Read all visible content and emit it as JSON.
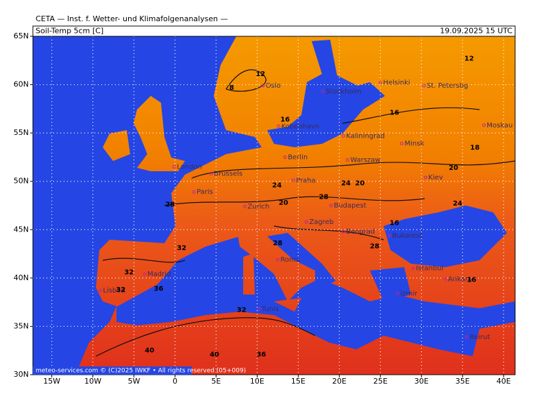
{
  "map": {
    "header": "CETA — Inst. f. Wetter- und Klimafolgenanalysen —",
    "panel_title": "Soil-Temp 5cm [C]",
    "valid_time": "19.09.2025 15 UTC",
    "footer": "meteo-services.com © (C)2025 IWKF • All rights reserved (05+009)",
    "lon_range": [
      -17.3,
      41.4
    ],
    "lat_range": [
      30,
      65
    ],
    "lon_ticks": [
      {
        "value": -15,
        "label": "15W"
      },
      {
        "value": -10,
        "label": "10W"
      },
      {
        "value": -5,
        "label": "5W"
      },
      0,
      {
        "value": 5,
        "label": "5E"
      },
      {
        "value": 10,
        "label": "10E"
      },
      {
        "value": 15,
        "label": "15E"
      },
      {
        "value": 20,
        "label": "20E"
      },
      {
        "value": 25,
        "label": "25E"
      },
      {
        "value": 30,
        "label": "30E"
      },
      {
        "value": 35,
        "label": "35E"
      },
      {
        "value": 40,
        "label": "40E"
      }
    ],
    "lat_ticks": [
      {
        "value": 30,
        "label": "30N"
      },
      {
        "value": 35,
        "label": "35N"
      },
      {
        "value": 40,
        "label": "40N"
      },
      {
        "value": 45,
        "label": "45N"
      },
      {
        "value": 50,
        "label": "50N"
      },
      {
        "value": 55,
        "label": "55N"
      },
      {
        "value": 60,
        "label": "60N"
      },
      {
        "value": 65,
        "label": "65N"
      }
    ],
    "cities": [
      {
        "name": "Oslo",
        "lon": 10.7,
        "lat": 59.9
      },
      {
        "name": "Stockholm",
        "lon": 18.0,
        "lat": 59.3
      },
      {
        "name": "Helsinki",
        "lon": 25.0,
        "lat": 60.2
      },
      {
        "name": "St. Petersbg",
        "lon": 30.3,
        "lat": 59.9
      },
      {
        "name": "Kobenhavn",
        "lon": 12.6,
        "lat": 55.7
      },
      {
        "name": "Kaliningrad",
        "lon": 20.5,
        "lat": 54.7
      },
      {
        "name": "Minsk",
        "lon": 27.6,
        "lat": 53.9
      },
      {
        "name": "Moskau",
        "lon": 37.6,
        "lat": 55.8
      },
      {
        "name": "London",
        "lon": -0.1,
        "lat": 51.5
      },
      {
        "name": "Brussels",
        "lon": 4.4,
        "lat": 50.8
      },
      {
        "name": "Berlin",
        "lon": 13.4,
        "lat": 52.5
      },
      {
        "name": "Warszaw",
        "lon": 21.0,
        "lat": 52.2
      },
      {
        "name": "Kiev",
        "lon": 30.5,
        "lat": 50.4
      },
      {
        "name": "Paris",
        "lon": 2.3,
        "lat": 48.9
      },
      {
        "name": "Praha",
        "lon": 14.4,
        "lat": 50.1
      },
      {
        "name": "Zurich",
        "lon": 8.5,
        "lat": 47.4
      },
      {
        "name": "Budapest",
        "lon": 19.0,
        "lat": 47.5
      },
      {
        "name": "Zagreb",
        "lon": 16.0,
        "lat": 45.8
      },
      {
        "name": "Beograd",
        "lon": 20.5,
        "lat": 44.8
      },
      {
        "name": "Bukarest",
        "lon": 26.1,
        "lat": 44.4
      },
      {
        "name": "Madrid",
        "lon": -3.7,
        "lat": 40.4
      },
      {
        "name": "Lisboa",
        "lon": -9.1,
        "lat": 38.7
      },
      {
        "name": "Roma",
        "lon": 12.5,
        "lat": 41.9
      },
      {
        "name": "Istanbul",
        "lon": 29.0,
        "lat": 41.0
      },
      {
        "name": "Ankara",
        "lon": 32.9,
        "lat": 39.9
      },
      {
        "name": "Izmir",
        "lon": 27.1,
        "lat": 38.4
      },
      {
        "name": "Beirut",
        "lon": 35.5,
        "lat": 33.9
      },
      {
        "name": "Tunis",
        "lon": 10.2,
        "lat": 36.8
      }
    ],
    "contour_labels": [
      {
        "value": 8,
        "lon": 6.9,
        "lat": 59.7
      },
      {
        "value": 12,
        "lon": 10.4,
        "lat": 61.1
      },
      {
        "value": 12,
        "lon": 35.8,
        "lat": 62.7
      },
      {
        "value": 16,
        "lon": 26.7,
        "lat": 57.1
      },
      {
        "value": 16,
        "lon": 13.4,
        "lat": 56.4
      },
      {
        "value": 18,
        "lon": 36.5,
        "lat": 53.5
      },
      {
        "value": 20,
        "lon": 33.9,
        "lat": 51.4
      },
      {
        "value": 20,
        "lon": 22.5,
        "lat": 49.8
      },
      {
        "value": 24,
        "lon": 20.8,
        "lat": 49.8
      },
      {
        "value": 24,
        "lon": 12.4,
        "lat": 49.6
      },
      {
        "value": 24,
        "lon": 34.4,
        "lat": 47.7
      },
      {
        "value": 28,
        "lon": 18.1,
        "lat": 48.4
      },
      {
        "value": 20,
        "lon": 13.2,
        "lat": 47.8
      },
      {
        "value": 28,
        "lon": -0.6,
        "lat": 47.6
      },
      {
        "value": 32,
        "lon": 0.8,
        "lat": 43.1
      },
      {
        "value": 28,
        "lon": 12.5,
        "lat": 43.6
      },
      {
        "value": 32,
        "lon": -5.6,
        "lat": 40.6
      },
      {
        "value": 32,
        "lon": -6.6,
        "lat": 38.8
      },
      {
        "value": 36,
        "lon": -2.0,
        "lat": 38.9
      },
      {
        "value": 28,
        "lon": 24.3,
        "lat": 43.3
      },
      {
        "value": 16,
        "lon": 36.1,
        "lat": 39.8
      },
      {
        "value": 32,
        "lon": 8.1,
        "lat": 36.7
      },
      {
        "value": 40,
        "lon": -3.1,
        "lat": 32.5
      },
      {
        "value": 40,
        "lon": 4.8,
        "lat": 32.1
      },
      {
        "value": 36,
        "lon": 10.5,
        "lat": 32.1
      },
      {
        "value": 16,
        "lon": 26.7,
        "lat": 45.7
      }
    ]
  }
}
